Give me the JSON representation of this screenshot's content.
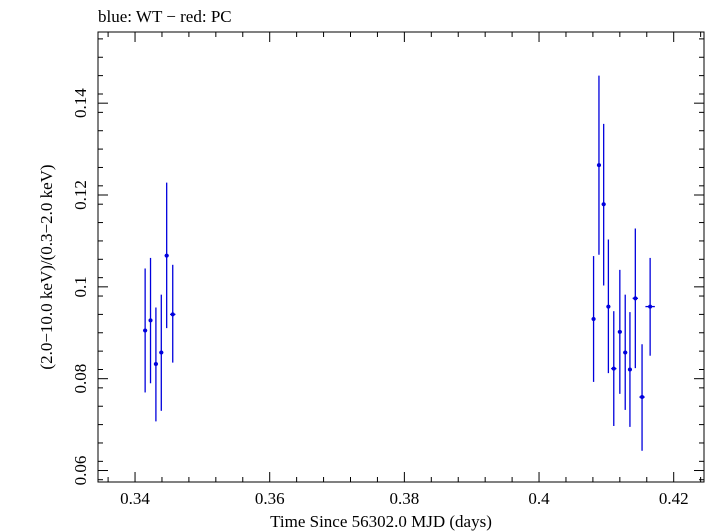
{
  "chart_data": {
    "type": "scatter",
    "title": "blue: WT − red: PC",
    "xlabel": "Time Since 56302.0 MJD (days)",
    "ylabel": "(2.0−10.0 keV)/(0.3−2.0 keV)",
    "xlim": [
      0.3345,
      0.4245
    ],
    "ylim": [
      0.0575,
      0.1555
    ],
    "x_ticks": [
      0.34,
      0.36,
      0.38,
      0.4,
      0.42
    ],
    "x_tick_labels": [
      "0.34",
      "0.36",
      "0.38",
      "0.4",
      "0.42"
    ],
    "y_ticks": [
      0.06,
      0.08,
      0.1,
      0.12,
      0.14
    ],
    "y_tick_labels": [
      "0.06",
      "0.08",
      "0.1",
      "0.12",
      "0.14"
    ],
    "grid": false,
    "series": [
      {
        "color": "#0000dd",
        "points": [
          {
            "x": 0.3415,
            "y": 0.0905,
            "ylo": 0.077,
            "yhi": 0.104,
            "xerr": 0.0003
          },
          {
            "x": 0.3423,
            "y": 0.0927,
            "ylo": 0.079,
            "yhi": 0.1063,
            "xerr": 0.0003
          },
          {
            "x": 0.3431,
            "y": 0.0832,
            "ylo": 0.0707,
            "yhi": 0.0955,
            "xerr": 0.0003
          },
          {
            "x": 0.3439,
            "y": 0.0857,
            "ylo": 0.073,
            "yhi": 0.0983,
            "xerr": 0.0003
          },
          {
            "x": 0.3447,
            "y": 0.1068,
            "ylo": 0.091,
            "yhi": 0.1227,
            "xerr": 0.0003
          },
          {
            "x": 0.3456,
            "y": 0.094,
            "ylo": 0.0835,
            "yhi": 0.1048,
            "xerr": 0.0004
          },
          {
            "x": 0.4081,
            "y": 0.093,
            "ylo": 0.0793,
            "yhi": 0.1067,
            "xerr": 0.0003
          },
          {
            "x": 0.4089,
            "y": 0.1265,
            "ylo": 0.107,
            "yhi": 0.146,
            "xerr": 0.0003
          },
          {
            "x": 0.4096,
            "y": 0.118,
            "ylo": 0.1003,
            "yhi": 0.1355,
            "xerr": 0.0003
          },
          {
            "x": 0.4103,
            "y": 0.0957,
            "ylo": 0.0812,
            "yhi": 0.1103,
            "xerr": 0.0003
          },
          {
            "x": 0.4111,
            "y": 0.0822,
            "ylo": 0.0697,
            "yhi": 0.0947,
            "xerr": 0.0004
          },
          {
            "x": 0.412,
            "y": 0.0902,
            "ylo": 0.0767,
            "yhi": 0.1037,
            "xerr": 0.0003
          },
          {
            "x": 0.4128,
            "y": 0.0857,
            "ylo": 0.0732,
            "yhi": 0.0983,
            "xerr": 0.0003
          },
          {
            "x": 0.4135,
            "y": 0.082,
            "ylo": 0.0695,
            "yhi": 0.0945,
            "xerr": 0.0003
          },
          {
            "x": 0.4143,
            "y": 0.0975,
            "ylo": 0.0823,
            "yhi": 0.1127,
            "xerr": 0.0004
          },
          {
            "x": 0.4153,
            "y": 0.076,
            "ylo": 0.0643,
            "yhi": 0.0875,
            "xerr": 0.0004
          },
          {
            "x": 0.4165,
            "y": 0.0957,
            "ylo": 0.085,
            "yhi": 0.1063,
            "xerr": 0.0007
          }
        ]
      }
    ]
  }
}
